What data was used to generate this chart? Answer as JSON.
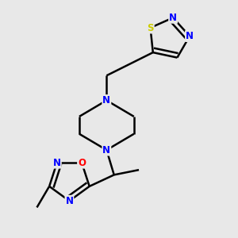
{
  "background_color": "#e8e8e8",
  "bond_color": "#000000",
  "atom_colors": {
    "N": "#0000ff",
    "O": "#ff0000",
    "S": "#cccc00",
    "C": "#000000"
  },
  "line_width": 1.8,
  "font_size": 8.5
}
